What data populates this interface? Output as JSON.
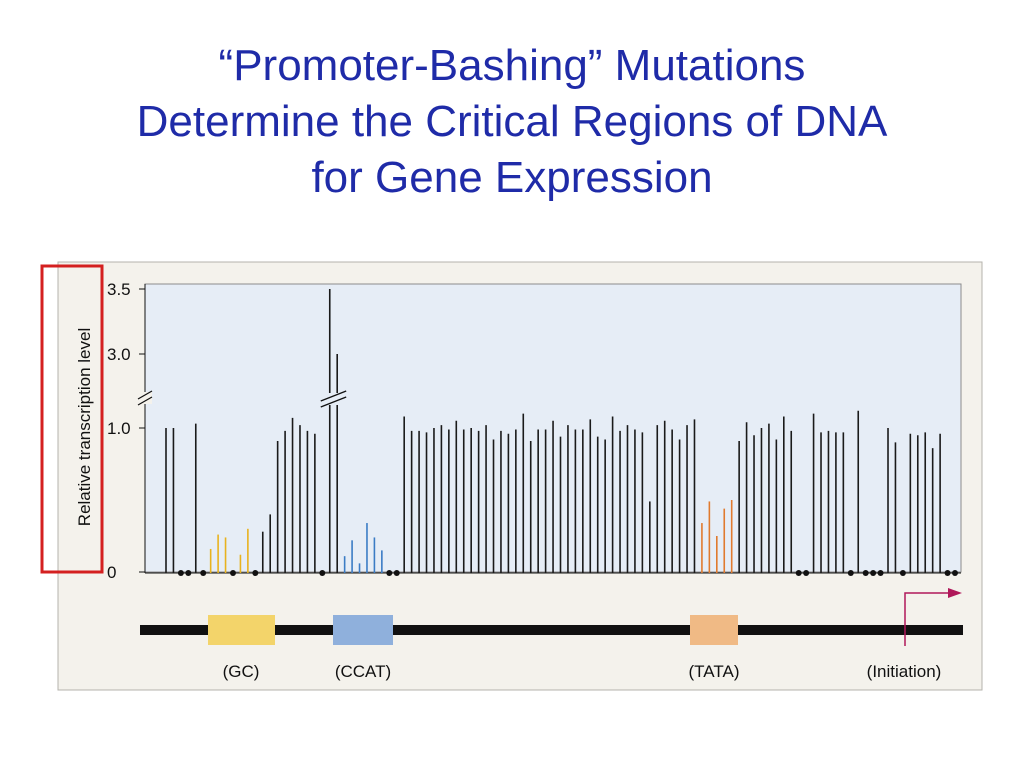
{
  "slide": {
    "title_lines": [
      "“Promoter-Bashing” Mutations",
      "Determine the Critical Regions of DNA",
      "for Gene Expression"
    ]
  },
  "colors": {
    "title": "#1f2ba8",
    "panel_bg": "#f4f2ec",
    "plot_bg": "#e6edf6",
    "bar": "#1a1a1a",
    "gc": "#e8b21e",
    "ccat": "#3b7cc5",
    "tata": "#e07a2e",
    "highlight": "#d42020",
    "arrow": "#b0185a"
  },
  "chart_data": {
    "type": "bar",
    "ylabel": "Relative transcription level",
    "ytick_labels": [
      "3.5",
      "3.0",
      "1.0",
      "0"
    ],
    "axis_break": true,
    "grid": false,
    "highlight_box": "ylabel",
    "series": [
      {
        "values": [
          1.0,
          1.0,
          0,
          0,
          1.03,
          0,
          0.16,
          0.26,
          0.24,
          0,
          0.12,
          0.3,
          0,
          0.28,
          0.4,
          0.91,
          0.98,
          1.07,
          1.02,
          0.98,
          0.96,
          0,
          3.5,
          3.0,
          0.11,
          0.22,
          0.06,
          0.34,
          0.24,
          0.15,
          0,
          0,
          1.08,
          0.98,
          0.98,
          0.97,
          1.0,
          1.02,
          0.99,
          1.05,
          0.99,
          1.0,
          0.98,
          1.02,
          0.92,
          0.98,
          0.96,
          0.99,
          1.1,
          0.91,
          0.99,
          0.99,
          1.05,
          0.94,
          1.02,
          0.99,
          0.99,
          1.06,
          0.94,
          0.92,
          1.08,
          0.98,
          1.02,
          0.99,
          0.97,
          0.49,
          1.02,
          1.05,
          0.99,
          0.92,
          1.02,
          1.06,
          0.34,
          0.49,
          0.25,
          0.44,
          0.5,
          0.91,
          1.04,
          0.95,
          1.0,
          1.03,
          0.92,
          1.08,
          0.98,
          0,
          0,
          1.1,
          0.97,
          0.98,
          0.97,
          0.97,
          0,
          1.12,
          0,
          0,
          0,
          1.0,
          0.9,
          0,
          0.96,
          0.95,
          0.97,
          0.86,
          0.96,
          0,
          0
        ]
      }
    ],
    "regions": [
      {
        "label": "(GC)",
        "color": "#f3d46a"
      },
      {
        "label": "(CCAT)",
        "color": "#8fb0dc"
      },
      {
        "label": "(TATA)",
        "color": "#f0ba85"
      },
      {
        "label": "(Initiation)"
      }
    ]
  }
}
